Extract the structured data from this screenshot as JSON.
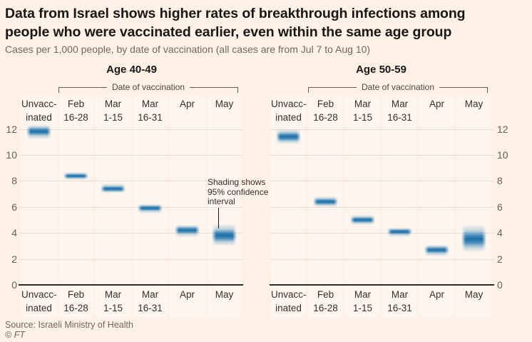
{
  "header": {
    "title": "Data from Israel shows higher rates of breakthrough infections among people who were vaccinated earlier, even within the same age group",
    "title_lines": [
      "Data from Israel shows higher rates of breakthrough infections among",
      "people who were vaccinated earlier, even within the same age group"
    ],
    "subtitle": "Cases per 1,000 people, by date of vaccination (all cases are from Jul 7 to Aug 10)"
  },
  "footer": {
    "source": "Source: Israeli Ministry of Health",
    "copyright": "© FT"
  },
  "annotation": {
    "lines": [
      "Shading shows",
      "95% confidence",
      "interval"
    ],
    "anchor_panel": "Age 40-49",
    "anchor_category": "May"
  },
  "colors": {
    "background": "#fff1e5",
    "column_stripe": "#fef6ee",
    "gridline": "#e9dbcd",
    "baseline": "#2e2a26",
    "band_blue": "#2b7cb3",
    "band_core": "#1f6fa6",
    "title_text": "#181716",
    "muted_text": "#6e6862",
    "label_text": "#33302e"
  },
  "chart_data": {
    "type": "bar",
    "subtype": "confidence-interval-range",
    "ylabel": "Cases per 1,000 people",
    "ylim": [
      0,
      12
    ],
    "yticks": [
      0,
      2,
      4,
      6,
      8,
      10,
      12
    ],
    "grid": true,
    "group_axis_label": "Date of vaccination",
    "categories": [
      [
        "Unvacc-",
        "inated"
      ],
      [
        "Feb",
        "16-28"
      ],
      [
        "Mar",
        "1-15"
      ],
      [
        "Mar",
        "16-31"
      ],
      [
        "Apr"
      ],
      [
        "May"
      ]
    ],
    "panels": [
      {
        "title": "Age 40-49",
        "y_axis_side": "left",
        "series": [
          {
            "category": "Unvaccinated",
            "mid": 11.8,
            "ci_low": 11.2,
            "ci_high": 12.3
          },
          {
            "category": "Feb 16-28",
            "mid": 8.4,
            "ci_low": 8.1,
            "ci_high": 8.7
          },
          {
            "category": "Mar 1-15",
            "mid": 7.4,
            "ci_low": 7.1,
            "ci_high": 7.8
          },
          {
            "category": "Mar 16-31",
            "mid": 5.9,
            "ci_low": 5.5,
            "ci_high": 6.2
          },
          {
            "category": "Apr",
            "mid": 4.2,
            "ci_low": 3.7,
            "ci_high": 4.6
          },
          {
            "category": "May",
            "mid": 3.8,
            "ci_low": 3.0,
            "ci_high": 4.7
          }
        ]
      },
      {
        "title": "Age 50-59",
        "y_axis_side": "right",
        "series": [
          {
            "category": "Unvaccinated",
            "mid": 11.4,
            "ci_low": 10.8,
            "ci_high": 12.0
          },
          {
            "category": "Feb 16-28",
            "mid": 6.4,
            "ci_low": 6.0,
            "ci_high": 6.8
          },
          {
            "category": "Mar 1-15",
            "mid": 5.0,
            "ci_low": 4.6,
            "ci_high": 5.4
          },
          {
            "category": "Mar 16-31",
            "mid": 4.1,
            "ci_low": 3.7,
            "ci_high": 4.4
          },
          {
            "category": "Apr",
            "mid": 2.7,
            "ci_low": 2.2,
            "ci_high": 3.1
          },
          {
            "category": "May",
            "mid": 3.5,
            "ci_low": 2.5,
            "ci_high": 4.6
          }
        ]
      }
    ]
  }
}
